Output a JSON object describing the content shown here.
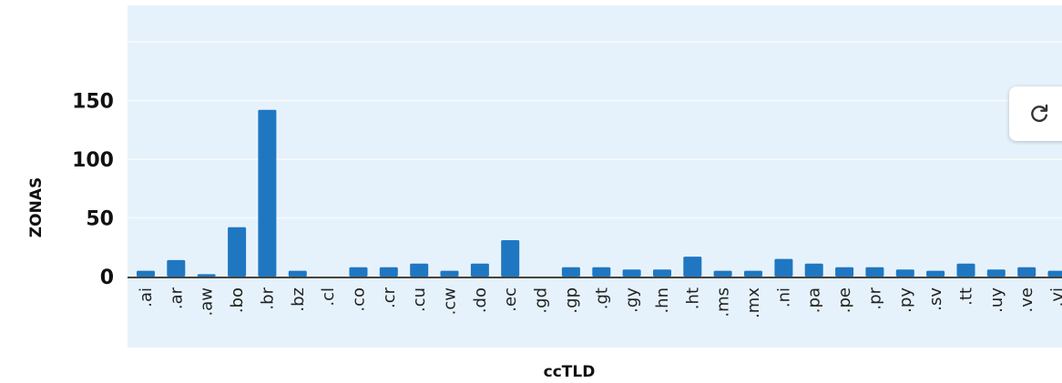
{
  "colors": {
    "plot_background": "#e6f2fb",
    "bar": "#1f77c2",
    "gridline": "#f4f9fd",
    "axis_line": "#444444"
  },
  "refresh_button": {
    "icon": "refresh-icon"
  },
  "chart_data": {
    "type": "bar",
    "categories": [
      ".ai",
      ".ar",
      ".aw",
      ".bo",
      ".br",
      ".bz",
      ".cl",
      ".co",
      ".cr",
      ".cu",
      ".cw",
      ".do",
      ".ec",
      ".gd",
      ".gp",
      ".gt",
      ".gy",
      ".hn",
      ".ht",
      ".ms",
      ".mx",
      ".ni",
      ".pa",
      ".pe",
      ".pr",
      ".py",
      ".sv",
      ".tt",
      ".uy",
      ".ve",
      ".vi"
    ],
    "values": [
      5,
      14,
      2,
      42,
      142,
      5,
      0,
      8,
      8,
      11,
      5,
      11,
      31,
      0,
      8,
      8,
      6,
      6,
      17,
      5,
      5,
      15,
      11,
      8,
      8,
      6,
      5,
      11,
      6,
      8,
      5
    ],
    "xlabel": "ccTLD",
    "ylabel": "ZONAS",
    "yticks": [
      0,
      50,
      100,
      150
    ],
    "ylim": [
      0,
      200
    ],
    "grid": true
  }
}
